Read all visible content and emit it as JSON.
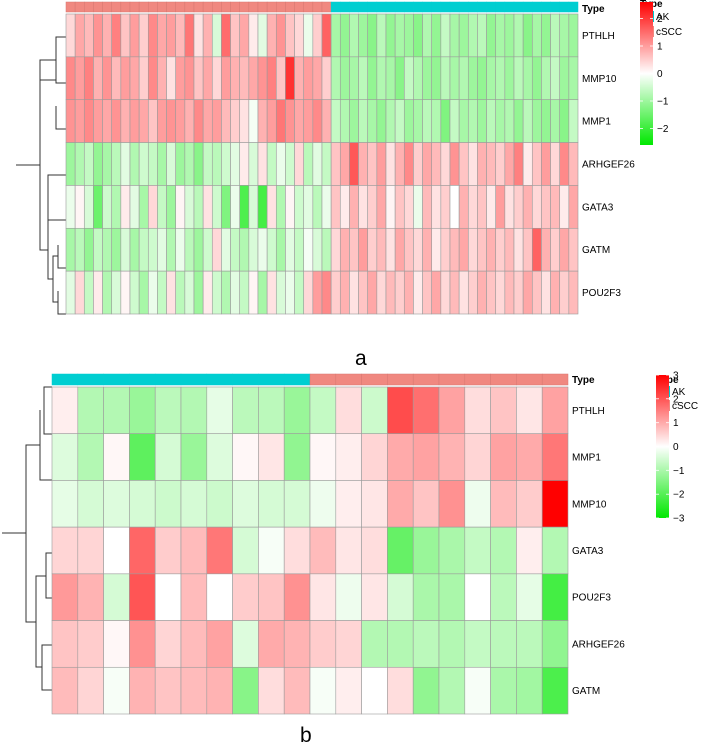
{
  "colors": {
    "AK": "#00CED1",
    "cSCC": "#F08880",
    "low": "#00E800",
    "mid": "#FFFFFF",
    "high": "#FF0000",
    "cell_border": "#9B9B9B"
  },
  "chart_data": [
    {
      "type": "heatmap",
      "panel_label": "a",
      "annotation_title": "Type",
      "legend": {
        "title": "Type",
        "entries": [
          "AK",
          "cSCC"
        ]
      },
      "colorbar": {
        "ticks": [
          2,
          1,
          0,
          -1,
          -2
        ],
        "range": [
          -2.6,
          2.6
        ]
      },
      "rows": [
        "PTHLH",
        "MMP10",
        "MMP1",
        "ARHGEF26",
        "GATA3",
        "GATM",
        "POU2F3"
      ],
      "column_types": [
        "cSCC",
        "cSCC",
        "cSCC",
        "cSCC",
        "cSCC",
        "cSCC",
        "cSCC",
        "cSCC",
        "cSCC",
        "cSCC",
        "cSCC",
        "cSCC",
        "cSCC",
        "cSCC",
        "cSCC",
        "cSCC",
        "cSCC",
        "cSCC",
        "cSCC",
        "cSCC",
        "cSCC",
        "cSCC",
        "cSCC",
        "cSCC",
        "cSCC",
        "cSCC",
        "cSCC",
        "cSCC",
        "cSCC",
        "AK",
        "AK",
        "AK",
        "AK",
        "AK",
        "AK",
        "AK",
        "AK",
        "AK",
        "AK",
        "AK",
        "AK",
        "AK",
        "AK",
        "AK",
        "AK",
        "AK",
        "AK",
        "AK",
        "AK",
        "AK",
        "AK",
        "AK",
        "AK",
        "AK",
        "AK",
        "AK"
      ],
      "values": [
        [
          0.4,
          0.9,
          0.7,
          1.1,
          0.8,
          1.3,
          0.6,
          1.0,
          0.5,
          1.2,
          0.9,
          1.0,
          0.7,
          1.4,
          0.3,
          0.8,
          -0.4,
          1.5,
          0.6,
          0.9,
          0.2,
          -0.3,
          0.8,
          1.1,
          0.6,
          0.4,
          -0.2,
          0.5,
          1.6,
          -0.9,
          -1.1,
          -0.8,
          -1.0,
          -1.2,
          -0.7,
          -1.1,
          -0.9,
          -1.0,
          -1.2,
          -0.8,
          -1.1,
          -0.6,
          -0.9,
          -1.0,
          -0.8,
          -0.7,
          -1.1,
          -0.9,
          -1.0,
          -0.8,
          -1.2,
          -0.9,
          -1.1,
          -0.7,
          -0.9,
          -1.0
        ],
        [
          1.2,
          1.0,
          1.3,
          0.8,
          1.1,
          0.7,
          1.0,
          0.9,
          0.5,
          1.2,
          0.8,
          0.3,
          1.0,
          1.1,
          0.6,
          0.9,
          0.4,
          1.0,
          0.8,
          0.7,
          0.9,
          1.1,
          1.3,
          0.6,
          2.1,
          0.8,
          1.0,
          0.9,
          0.5,
          -0.8,
          -1.0,
          -0.9,
          -0.7,
          -1.1,
          -0.8,
          -0.9,
          -1.2,
          -0.6,
          -0.8,
          -1.0,
          -1.1,
          -0.7,
          -0.9,
          -0.8,
          -1.0,
          -1.1,
          -0.9,
          -0.8,
          -1.0,
          -0.7,
          -0.9,
          -1.1,
          -0.8,
          -0.6,
          -1.0,
          -0.9
        ],
        [
          1.1,
          1.0,
          1.2,
          1.0,
          0.9,
          1.1,
          0.8,
          1.0,
          0.9,
          0.6,
          1.0,
          1.1,
          1.0,
          0.8,
          1.2,
          0.9,
          1.0,
          0.7,
          0.5,
          0.3,
          -0.1,
          0.8,
          1.0,
          1.4,
          1.1,
          0.9,
          1.0,
          1.2,
          0.8,
          -0.6,
          -0.8,
          -1.0,
          -0.7,
          -0.9,
          -1.1,
          -0.8,
          -0.6,
          -1.0,
          -0.9,
          -0.7,
          -0.8,
          -1.3,
          -0.6,
          -0.9,
          -0.8,
          -1.0,
          -0.7,
          -0.9,
          -0.8,
          -1.1,
          -0.7,
          -1.0,
          -1.1,
          -0.9,
          -1.2,
          -0.6
        ],
        [
          -1.0,
          -0.8,
          -0.6,
          -1.1,
          -0.9,
          -0.7,
          -0.3,
          -0.8,
          -0.5,
          -0.6,
          -0.9,
          -0.4,
          -1.0,
          -0.8,
          -1.2,
          -0.6,
          -0.7,
          -0.5,
          -0.3,
          0.2,
          -0.4,
          0.3,
          -0.6,
          -0.2,
          -0.5,
          0.4,
          -0.7,
          -0.3,
          -0.6,
          0.6,
          0.9,
          1.7,
          0.8,
          0.6,
          1.0,
          0.3,
          0.8,
          1.2,
          0.5,
          0.9,
          0.7,
          0.4,
          1.1,
          0.6,
          0.3,
          0.8,
          0.7,
          0.5,
          0.9,
          1.3,
          0.2,
          0.6,
          1.0,
          0.4,
          1.2,
          0.7
        ],
        [
          -0.2,
          0.1,
          -0.4,
          -1.5,
          -0.5,
          -0.8,
          0.2,
          -0.3,
          -0.9,
          0.4,
          -0.6,
          -1.0,
          0.1,
          -0.4,
          -0.7,
          0.3,
          -0.5,
          -1.3,
          -0.2,
          -1.8,
          -0.4,
          -1.9,
          0.3,
          -0.8,
          0.1,
          -0.5,
          -0.3,
          -0.7,
          -0.2,
          0.6,
          0.2,
          0.8,
          0.3,
          0.5,
          0.9,
          0.1,
          0.6,
          0.4,
          -0.2,
          0.7,
          0.3,
          0.5,
          0.0,
          0.8,
          0.4,
          0.6,
          0.2,
          1.0,
          0.3,
          0.5,
          0.8,
          0.4,
          0.6,
          0.7,
          0.2,
          0.9
        ],
        [
          -0.9,
          -0.7,
          -1.1,
          -0.6,
          -0.8,
          -1.0,
          -0.4,
          -0.9,
          -0.6,
          -0.5,
          -0.3,
          -0.8,
          -0.2,
          -0.7,
          -1.0,
          -0.5,
          0.4,
          -0.3,
          -0.6,
          -0.8,
          -0.4,
          -0.2,
          -0.5,
          -0.9,
          -0.3,
          -0.6,
          -0.1,
          -0.4,
          -0.7,
          0.4,
          0.8,
          0.6,
          1.0,
          0.5,
          0.7,
          0.3,
          0.9,
          0.6,
          0.4,
          0.8,
          0.2,
          0.5,
          0.7,
          0.9,
          0.4,
          0.6,
          0.8,
          0.5,
          0.7,
          0.3,
          0.6,
          1.6,
          0.8,
          0.5,
          0.9,
          0.6
        ],
        [
          -0.3,
          0.4,
          -0.6,
          0.2,
          -0.8,
          -0.4,
          0.1,
          -0.5,
          -0.9,
          -0.2,
          -0.6,
          0.3,
          -0.7,
          -0.4,
          -1.0,
          0.2,
          -0.5,
          -0.8,
          -0.3,
          -0.6,
          0.1,
          -0.9,
          0.3,
          -0.4,
          -0.2,
          -0.6,
          0.4,
          1.0,
          1.2,
          0.5,
          0.8,
          0.3,
          0.6,
          0.9,
          0.4,
          0.7,
          0.5,
          0.8,
          0.2,
          0.6,
          0.9,
          0.4,
          0.7,
          0.3,
          0.5,
          0.8,
          0.6,
          0.4,
          0.7,
          0.5,
          0.9,
          0.6,
          0.3,
          0.8,
          0.5,
          0.7
        ]
      ]
    },
    {
      "type": "heatmap",
      "panel_label": "b",
      "annotation_title": "Type",
      "legend": {
        "title": "Type",
        "entries": [
          "AK",
          "cSCC"
        ]
      },
      "colorbar": {
        "ticks": [
          3,
          2,
          1,
          0,
          -1,
          -2,
          -3
        ],
        "range": [
          -3,
          3
        ]
      },
      "rows": [
        "PTHLH",
        "MMP1",
        "MMP10",
        "GATA3",
        "POU2F3",
        "ARHGEF26",
        "GATM"
      ],
      "column_types": [
        "AK",
        "AK",
        "AK",
        "AK",
        "AK",
        "AK",
        "AK",
        "AK",
        "AK",
        "AK",
        "cSCC",
        "cSCC",
        "cSCC",
        "cSCC",
        "cSCC",
        "cSCC",
        "cSCC",
        "cSCC",
        "cSCC",
        "cSCC"
      ],
      "values": [
        [
          0.2,
          -0.9,
          -0.9,
          -1.2,
          -0.8,
          -0.9,
          -0.3,
          -0.8,
          -0.8,
          -1.2,
          -0.7,
          0.4,
          -0.6,
          2.1,
          1.7,
          1.1,
          0.4,
          0.7,
          0.3,
          1.1
        ],
        [
          -0.4,
          -0.9,
          0.1,
          -1.9,
          -0.5,
          -1.2,
          -0.4,
          0.1,
          0.3,
          -1.3,
          0.1,
          0.2,
          0.5,
          1.0,
          1.1,
          0.9,
          0.5,
          1.1,
          1.0,
          1.6
        ],
        [
          -0.3,
          -0.5,
          -0.4,
          -0.5,
          -0.6,
          -0.5,
          -0.6,
          -0.4,
          -0.5,
          -0.5,
          -0.2,
          0.2,
          0.3,
          1.0,
          0.7,
          1.3,
          -0.2,
          0.8,
          0.6,
          3.0
        ],
        [
          0.5,
          0.5,
          0.0,
          1.8,
          0.6,
          0.8,
          1.6,
          -0.5,
          -0.1,
          0.4,
          0.8,
          0.3,
          0.4,
          -1.8,
          -1.2,
          -1.0,
          -0.7,
          -0.9,
          0.2,
          -0.9
        ],
        [
          1.2,
          0.9,
          -0.5,
          2.0,
          0.0,
          0.8,
          0.0,
          0.6,
          0.7,
          1.3,
          0.3,
          -0.2,
          0.3,
          -0.5,
          -1.0,
          -1.0,
          0.0,
          -0.8,
          -0.3,
          -2.2
        ],
        [
          0.7,
          0.6,
          0.1,
          1.3,
          0.5,
          0.8,
          1.1,
          -0.4,
          1.0,
          0.9,
          0.6,
          0.5,
          -0.9,
          -0.9,
          -0.8,
          -0.9,
          -0.7,
          -0.8,
          -0.8,
          -1.3
        ],
        [
          0.8,
          0.5,
          -0.1,
          0.9,
          0.7,
          0.8,
          0.9,
          -1.4,
          0.4,
          0.8,
          -0.1,
          0.2,
          0.0,
          0.4,
          -1.3,
          -0.9,
          -0.1,
          -1.0,
          -1.1,
          -2.1
        ]
      ]
    }
  ]
}
